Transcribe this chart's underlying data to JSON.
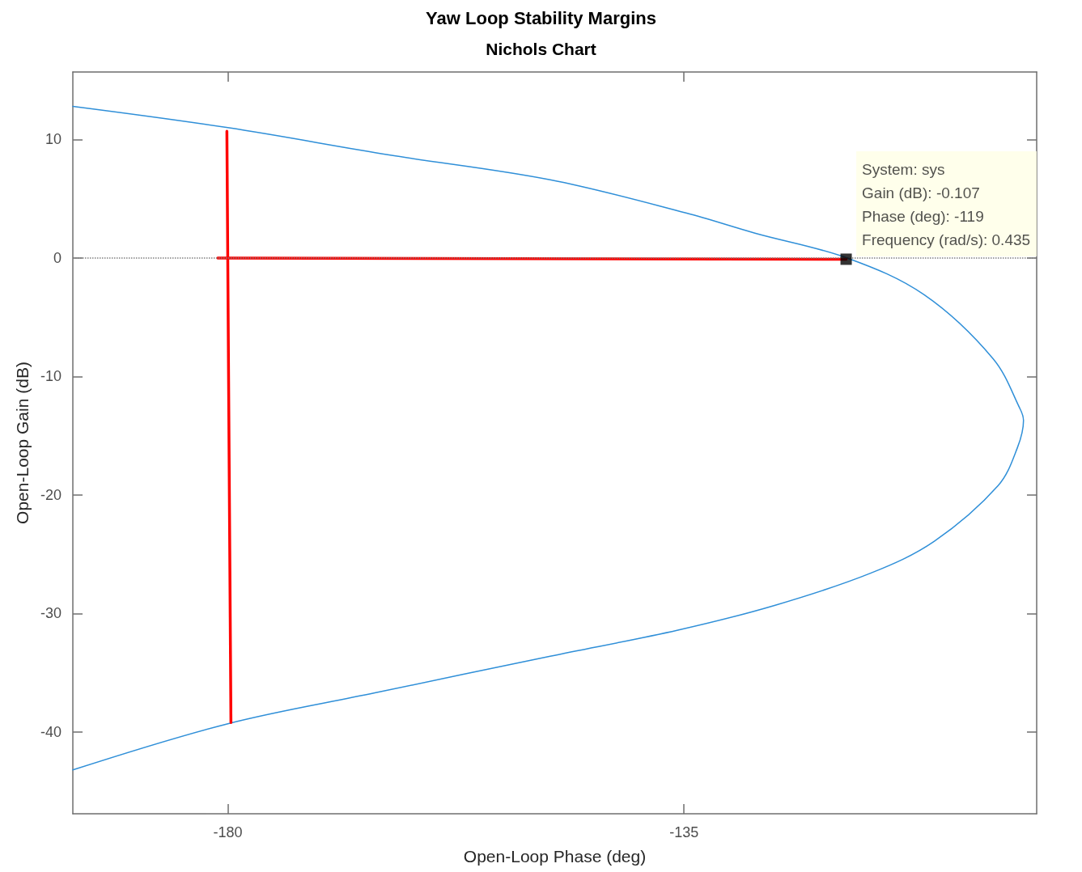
{
  "chart_data": {
    "type": "line",
    "title": "Yaw Loop Stability Margins",
    "subtitle": "Nichols Chart",
    "xlabel": "Open-Loop Phase (deg)",
    "ylabel": "Open-Loop Gain (dB)",
    "xlim": [
      -195.3,
      -100.2
    ],
    "ylim": [
      -46.9,
      15.7
    ],
    "xticks": [
      -180,
      -135
    ],
    "yticks": [
      -40,
      -30,
      -20,
      -10,
      0,
      10
    ],
    "grid": false,
    "marker": "none",
    "line_style": "solid",
    "ref_lines": [
      {
        "axis": "y",
        "value": 0,
        "color": "#808080",
        "line_style": "dotted"
      }
    ],
    "series": [
      {
        "color": "#2f8fd8",
        "x": [
          -195.3,
          -180,
          -164.1,
          -148.2,
          -134.8,
          -128,
          -118.9,
          -111.3,
          -104.5,
          -101.8,
          -101.5,
          -102.1,
          -104,
          -110.3,
          -116.6,
          -126,
          -135.6,
          -148.2,
          -165.5,
          -180,
          -195.3
        ],
        "values": [
          12.8,
          11,
          8.7,
          6.6,
          3.8,
          2.1,
          0,
          -3.1,
          -8.5,
          -12.8,
          -13.7,
          -16,
          -19.2,
          -23.9,
          -26.6,
          -29.3,
          -31.4,
          -33.6,
          -36.7,
          -39.3,
          -43.2
        ]
      },
      {
        "color": "#ff0000",
        "x": [
          -180.1,
          -179.7
        ],
        "values": [
          10.7,
          -39.2
        ]
      },
      {
        "color": "#ff0000",
        "x": [
          -181,
          -119
        ],
        "values": [
          0,
          -0.1
        ]
      },
      {
        "type": "scatter",
        "marker": "square",
        "color": "#000000",
        "x": [
          -119
        ],
        "values": [
          -0.1
        ]
      }
    ],
    "annotations": [
      {
        "text": "System: sys\nGain (dB): -0.107\nPhase (deg): -119\nFrequency (rad/s): 0.435",
        "x": -119,
        "y": -0.107
      }
    ]
  }
}
